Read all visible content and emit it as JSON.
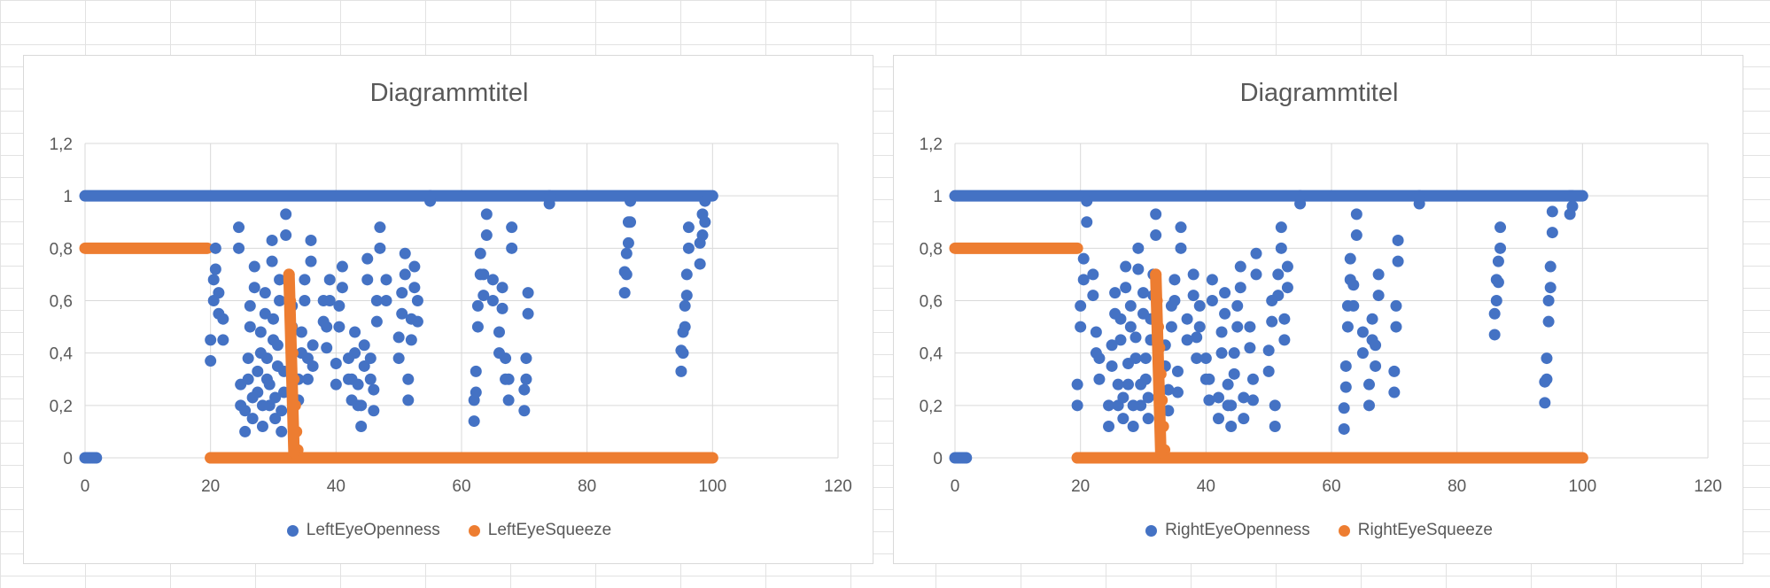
{
  "chart_data": [
    {
      "type": "scatter",
      "title": "Diagrammtitel",
      "xlim": [
        0,
        120
      ],
      "ylim": [
        0,
        1.2
      ],
      "xticks": [
        "0",
        "20",
        "40",
        "60",
        "80",
        "100",
        "120"
      ],
      "yticks": [
        "0",
        "0,2",
        "0,4",
        "0,6",
        "0,8",
        "1",
        "1,2"
      ],
      "grid": "horizontal",
      "legend_position": "bottom",
      "series": [
        {
          "name": "LeftEyeOpenness",
          "color": "#4472c4",
          "points": [
            [
              0,
              0
            ],
            [
              0.3,
              0
            ],
            [
              0.6,
              0
            ],
            [
              0.9,
              0
            ],
            [
              1.2,
              0
            ],
            [
              1.5,
              0
            ],
            [
              1.8,
              0
            ],
            [
              20,
              0.37
            ],
            [
              20.5,
              0.6
            ],
            [
              20.8,
              0.72
            ],
            [
              21.3,
              0.55
            ],
            [
              22,
              0.45
            ],
            [
              24.5,
              0.8
            ],
            [
              24.8,
              0.2
            ],
            [
              25.5,
              0.1
            ],
            [
              26,
              0.3
            ],
            [
              26.3,
              0.5
            ],
            [
              26.7,
              0.15
            ],
            [
              27,
              0.65
            ],
            [
              27.5,
              0.25
            ],
            [
              28,
              0.4
            ],
            [
              28.3,
              0.12
            ],
            [
              28.7,
              0.55
            ],
            [
              29,
              0.3
            ],
            [
              29.4,
              0.2
            ],
            [
              29.8,
              0.75
            ],
            [
              30,
              0.45
            ],
            [
              30.3,
              0.15
            ],
            [
              30.7,
              0.35
            ],
            [
              31,
              0.6
            ],
            [
              31.3,
              0.1
            ],
            [
              31.7,
              0.25
            ],
            [
              32,
              0.85
            ],
            [
              33,
              0.5
            ],
            [
              34,
              0.22
            ],
            [
              34.5,
              0.4
            ],
            [
              35,
              0.6
            ],
            [
              35.5,
              0.3
            ],
            [
              36,
              0.75
            ],
            [
              36.3,
              0.35
            ],
            [
              38,
              0.52
            ],
            [
              38.5,
              0.42
            ],
            [
              39,
              0.6
            ],
            [
              40,
              0.28
            ],
            [
              40.5,
              0.5
            ],
            [
              41,
              0.65
            ],
            [
              42,
              0.3
            ],
            [
              42.5,
              0.22
            ],
            [
              43,
              0.4
            ],
            [
              43.5,
              0.2
            ],
            [
              44,
              0.12
            ],
            [
              44.5,
              0.35
            ],
            [
              45,
              0.68
            ],
            [
              45.5,
              0.3
            ],
            [
              46,
              0.18
            ],
            [
              46.5,
              0.52
            ],
            [
              47,
              0.8
            ],
            [
              48,
              0.6
            ],
            [
              50,
              0.38
            ],
            [
              50.5,
              0.55
            ],
            [
              51,
              0.7
            ],
            [
              51.5,
              0.22
            ],
            [
              52,
              0.45
            ],
            [
              52.5,
              0.65
            ],
            [
              53,
              0.52
            ],
            [
              55,
              0.98
            ],
            [
              62,
              0.14
            ],
            [
              62.3,
              0.25
            ],
            [
              62.6,
              0.5
            ],
            [
              63,
              0.7
            ],
            [
              63.5,
              0.62
            ],
            [
              64,
              0.85
            ],
            [
              65,
              0.6
            ],
            [
              66,
              0.4
            ],
            [
              66.5,
              0.57
            ],
            [
              67,
              0.3
            ],
            [
              67.5,
              0.22
            ],
            [
              68,
              0.8
            ],
            [
              70,
              0.18
            ],
            [
              70.3,
              0.3
            ],
            [
              70.6,
              0.55
            ],
            [
              74,
              0.97
            ],
            [
              86,
              0.63
            ],
            [
              86.3,
              0.7
            ],
            [
              86.6,
              0.82
            ],
            [
              86.9,
              0.9
            ],
            [
              95,
              0.33
            ],
            [
              95.3,
              0.4
            ],
            [
              95.6,
              0.5
            ],
            [
              95.9,
              0.62
            ],
            [
              96.2,
              0.8
            ],
            [
              98,
              0.74
            ],
            [
              98.4,
              0.85
            ],
            [
              98.8,
              0.9
            ]
          ]
        },
        {
          "name": "LeftEyeSqueeze",
          "color": "#ed7d31",
          "points": [
            [
              20,
              0
            ],
            [
              32.5,
              0.7
            ],
            [
              32.7,
              0.6
            ],
            [
              32.9,
              0.5
            ],
            [
              33.1,
              0.4
            ],
            [
              33.3,
              0.3
            ],
            [
              33.5,
              0.2
            ],
            [
              33.7,
              0.1
            ],
            [
              33.9,
              0.03
            ]
          ]
        }
      ]
    },
    {
      "type": "scatter",
      "title": "Diagrammtitel",
      "xlim": [
        0,
        120
      ],
      "ylim": [
        0,
        1.2
      ],
      "xticks": [
        "0",
        "20",
        "40",
        "60",
        "80",
        "100",
        "120"
      ],
      "yticks": [
        "0",
        "0,2",
        "0,4",
        "0,6",
        "0,8",
        "1",
        "1,2"
      ],
      "grid": "horizontal",
      "legend_position": "bottom",
      "series": [
        {
          "name": "RightEyeOpenness",
          "color": "#4472c4",
          "points": [
            [
              0,
              0
            ],
            [
              0.3,
              0
            ],
            [
              0.6,
              0
            ],
            [
              0.9,
              0
            ],
            [
              1.2,
              0
            ],
            [
              1.5,
              0
            ],
            [
              1.8,
              0
            ],
            [
              19.5,
              0.2
            ],
            [
              20,
              0.5
            ],
            [
              20.5,
              0.68
            ],
            [
              21,
              0.9
            ],
            [
              22,
              0.62
            ],
            [
              22.5,
              0.4
            ],
            [
              23,
              0.3
            ],
            [
              24.5,
              0.12
            ],
            [
              25,
              0.35
            ],
            [
              25.5,
              0.55
            ],
            [
              26,
              0.2
            ],
            [
              26.4,
              0.45
            ],
            [
              26.8,
              0.15
            ],
            [
              27.2,
              0.65
            ],
            [
              27.6,
              0.28
            ],
            [
              28,
              0.5
            ],
            [
              28.4,
              0.12
            ],
            [
              28.8,
              0.38
            ],
            [
              29.2,
              0.72
            ],
            [
              29.6,
              0.2
            ],
            [
              30,
              0.55
            ],
            [
              30.4,
              0.3
            ],
            [
              30.8,
              0.15
            ],
            [
              31.2,
              0.45
            ],
            [
              31.6,
              0.62
            ],
            [
              32,
              0.85
            ],
            [
              33.5,
              0.35
            ],
            [
              34,
              0.18
            ],
            [
              34.5,
              0.5
            ],
            [
              35,
              0.6
            ],
            [
              35.5,
              0.25
            ],
            [
              36,
              0.8
            ],
            [
              37,
              0.45
            ],
            [
              38,
              0.62
            ],
            [
              38.5,
              0.38
            ],
            [
              39,
              0.5
            ],
            [
              40,
              0.3
            ],
            [
              40.5,
              0.22
            ],
            [
              41,
              0.6
            ],
            [
              42,
              0.15
            ],
            [
              42.5,
              0.4
            ],
            [
              43,
              0.55
            ],
            [
              43.5,
              0.2
            ],
            [
              44,
              0.12
            ],
            [
              44.5,
              0.32
            ],
            [
              45,
              0.5
            ],
            [
              45.5,
              0.65
            ],
            [
              46,
              0.15
            ],
            [
              47,
              0.42
            ],
            [
              47.5,
              0.22
            ],
            [
              48,
              0.7
            ],
            [
              50,
              0.33
            ],
            [
              50.5,
              0.52
            ],
            [
              51,
              0.12
            ],
            [
              51.5,
              0.62
            ],
            [
              52,
              0.8
            ],
            [
              52.5,
              0.45
            ],
            [
              53,
              0.65
            ],
            [
              55,
              0.97
            ],
            [
              62,
              0.11
            ],
            [
              62.3,
              0.27
            ],
            [
              62.6,
              0.5
            ],
            [
              63,
              0.68
            ],
            [
              63.5,
              0.58
            ],
            [
              64,
              0.85
            ],
            [
              65,
              0.4
            ],
            [
              66,
              0.2
            ],
            [
              66.5,
              0.45
            ],
            [
              67,
              0.35
            ],
            [
              67.5,
              0.62
            ],
            [
              70,
              0.25
            ],
            [
              70.3,
              0.5
            ],
            [
              70.6,
              0.75
            ],
            [
              74,
              0.97
            ],
            [
              86,
              0.47
            ],
            [
              86.3,
              0.6
            ],
            [
              86.6,
              0.67
            ],
            [
              86.9,
              0.8
            ],
            [
              94,
              0.21
            ],
            [
              94.3,
              0.3
            ],
            [
              94.6,
              0.52
            ],
            [
              94.9,
              0.65
            ],
            [
              95.2,
              0.86
            ],
            [
              98,
              0.93
            ],
            [
              98.4,
              0.96
            ]
          ]
        },
        {
          "name": "RightEyeSqueeze",
          "color": "#ed7d31",
          "points": [
            [
              19.5,
              0
            ],
            [
              32,
              0.7
            ],
            [
              32.2,
              0.6
            ],
            [
              32.4,
              0.5
            ],
            [
              32.6,
              0.42
            ],
            [
              32.8,
              0.32
            ],
            [
              33,
              0.22
            ],
            [
              33.2,
              0.12
            ],
            [
              33.4,
              0.03
            ]
          ]
        }
      ]
    }
  ]
}
